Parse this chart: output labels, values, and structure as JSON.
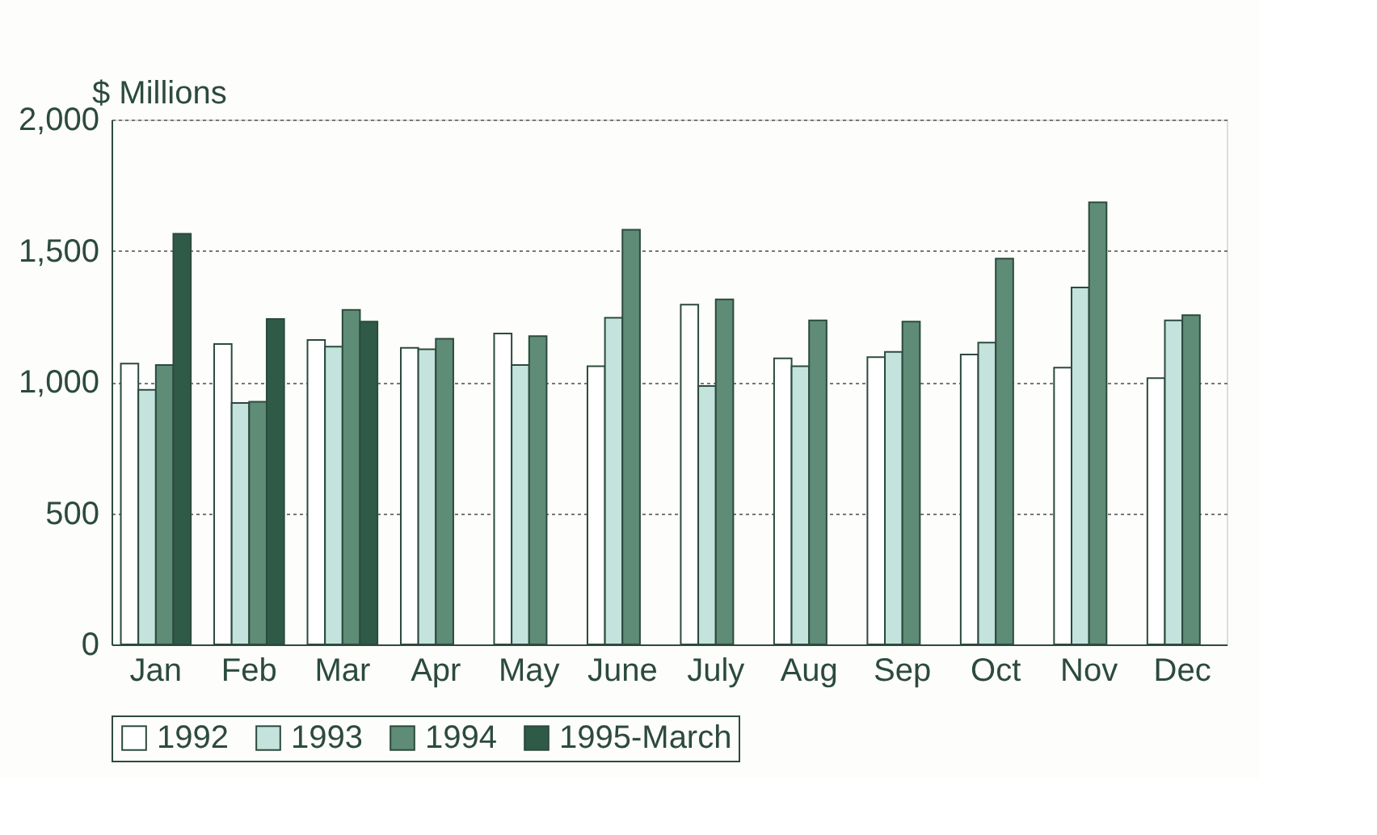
{
  "chart_data": {
    "type": "bar",
    "ylabel": "$ Millions",
    "categories": [
      "Jan",
      "Feb",
      "Mar",
      "Apr",
      "May",
      "June",
      "July",
      "Aug",
      "Sep",
      "Oct",
      "Nov",
      "Dec"
    ],
    "series": [
      {
        "name": "1992",
        "color": "#ffffff",
        "values": [
          1070,
          1145,
          1160,
          1130,
          1185,
          1060,
          1295,
          1090,
          1095,
          1105,
          1055,
          1015
        ]
      },
      {
        "name": "1993",
        "color": "#c5e3dd",
        "values": [
          970,
          920,
          1135,
          1125,
          1065,
          1245,
          985,
          1060,
          1115,
          1150,
          1360,
          1235
        ]
      },
      {
        "name": "1994",
        "color": "#5e8c76",
        "values": [
          1065,
          925,
          1275,
          1165,
          1175,
          1580,
          1315,
          1235,
          1230,
          1470,
          1685,
          1255
        ]
      },
      {
        "name": "1995-March",
        "color": "#2f5a48",
        "values": [
          1565,
          1240,
          1230,
          null,
          null,
          null,
          null,
          null,
          null,
          null,
          null,
          null
        ]
      }
    ],
    "ylim": [
      0,
      2000
    ],
    "yticks": [
      {
        "value": 0,
        "label": "0"
      },
      {
        "value": 500,
        "label": "500"
      },
      {
        "value": 1000,
        "label": "1,000"
      },
      {
        "value": 1500,
        "label": "1,500"
      },
      {
        "value": 2000,
        "label": "2,000"
      }
    ],
    "grid": "y",
    "legend": "bottom"
  }
}
